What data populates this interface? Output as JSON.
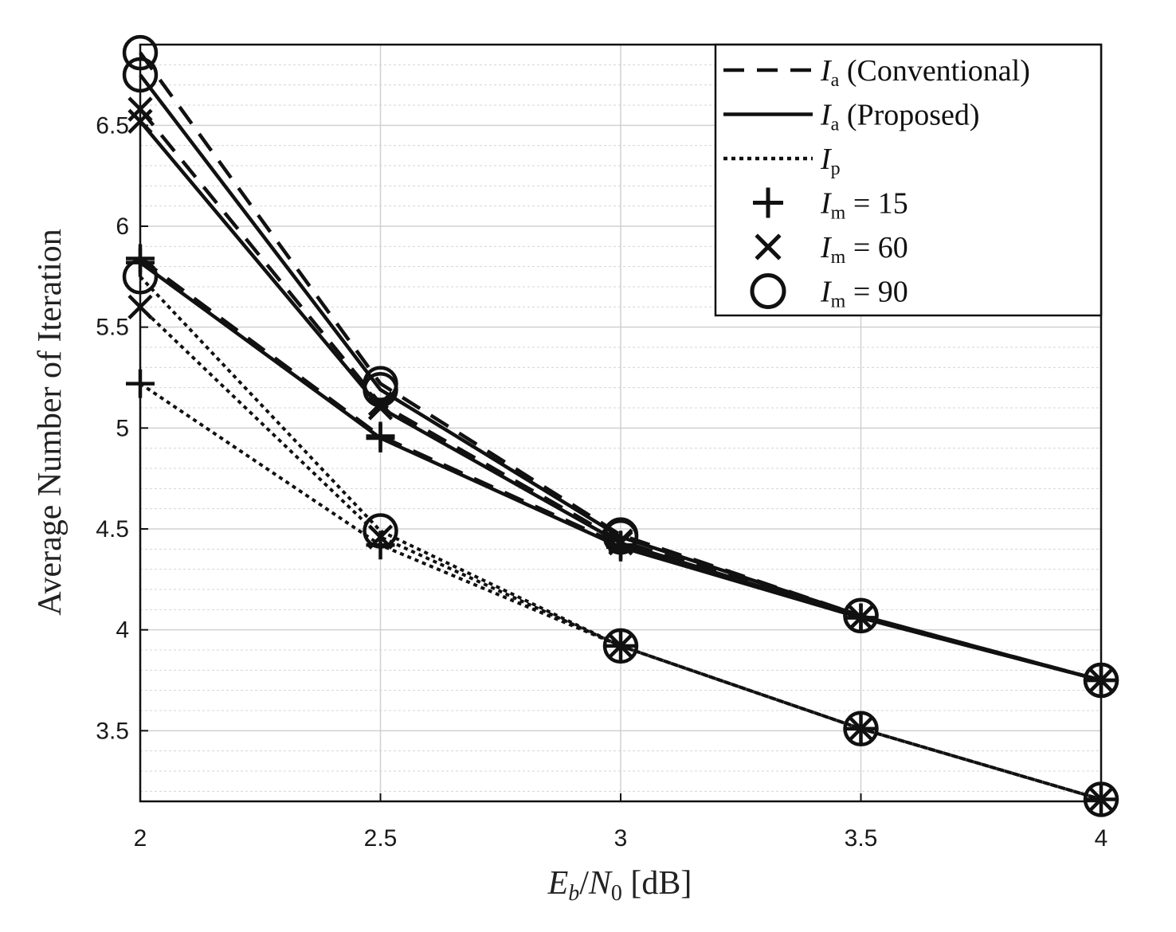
{
  "chart_data": {
    "type": "line",
    "xlabel": "E_b/N_0 [dB]",
    "xlabel_parts": {
      "e": "E",
      "e_sub": "b",
      "slash": "/",
      "n": "N",
      "n_sub": "0",
      "unit": " [dB]"
    },
    "ylabel": "Average Number of Iteration",
    "x": [
      2,
      2.5,
      3,
      3.5,
      4
    ],
    "xlim": [
      2,
      4
    ],
    "ylim": [
      3.15,
      6.9
    ],
    "xticks": [
      "2",
      "2.5",
      "3",
      "3.5",
      "4"
    ],
    "yticks": [
      "3.5",
      "4",
      "4.5",
      "5",
      "5.5",
      "6",
      "6.5"
    ],
    "grid": true,
    "minor_grid_y": true,
    "legend_position": "top-right",
    "legend": [
      {
        "kind": "line",
        "style": "dashed",
        "sym": "I",
        "sub": "a",
        "rest": " (Conventional)"
      },
      {
        "kind": "line",
        "style": "solid",
        "sym": "I",
        "sub": "a",
        "rest": " (Proposed)"
      },
      {
        "kind": "line",
        "style": "dotted",
        "sym": "I",
        "sub": "p",
        "rest": ""
      },
      {
        "kind": "marker",
        "marker": "plus",
        "sym": "I",
        "sub": "m",
        "rest": " = 15"
      },
      {
        "kind": "marker",
        "marker": "x",
        "sym": "I",
        "sub": "m",
        "rest": " = 60"
      },
      {
        "kind": "marker",
        "marker": "circle",
        "sym": "I",
        "sub": "m",
        "rest": " = 90"
      }
    ],
    "series": [
      {
        "name": "I_a (Conventional), I_m = 15",
        "style": "dashed",
        "marker": "plus",
        "values": [
          5.84,
          4.96,
          4.42,
          4.06,
          3.75
        ]
      },
      {
        "name": "I_a (Conventional), I_m = 60",
        "style": "dashed",
        "marker": "x",
        "values": [
          6.58,
          5.12,
          4.44,
          4.06,
          3.75
        ]
      },
      {
        "name": "I_a (Conventional), I_m = 90",
        "style": "dashed",
        "marker": "circle",
        "values": [
          6.86,
          5.22,
          4.47,
          4.07,
          3.75
        ]
      },
      {
        "name": "I_a (Proposed), I_m = 15",
        "style": "solid",
        "marker": "plus",
        "values": [
          5.82,
          4.95,
          4.41,
          4.06,
          3.75
        ]
      },
      {
        "name": "I_a (Proposed), I_m = 60",
        "style": "solid",
        "marker": "x",
        "values": [
          6.52,
          5.1,
          4.43,
          4.06,
          3.75
        ]
      },
      {
        "name": "I_a (Proposed), I_m = 90",
        "style": "solid",
        "marker": "circle",
        "values": [
          6.75,
          5.19,
          4.46,
          4.07,
          3.75
        ]
      },
      {
        "name": "I_p, I_m = 15",
        "style": "dotted",
        "marker": "plus",
        "values": [
          5.22,
          4.42,
          3.92,
          3.51,
          3.16
        ]
      },
      {
        "name": "I_p, I_m = 60",
        "style": "dotted",
        "marker": "x",
        "values": [
          5.6,
          4.46,
          3.92,
          3.51,
          3.16
        ]
      },
      {
        "name": "I_p, I_m = 90",
        "style": "dotted",
        "marker": "circle",
        "values": [
          5.75,
          4.49,
          3.92,
          3.51,
          3.16
        ]
      }
    ]
  }
}
